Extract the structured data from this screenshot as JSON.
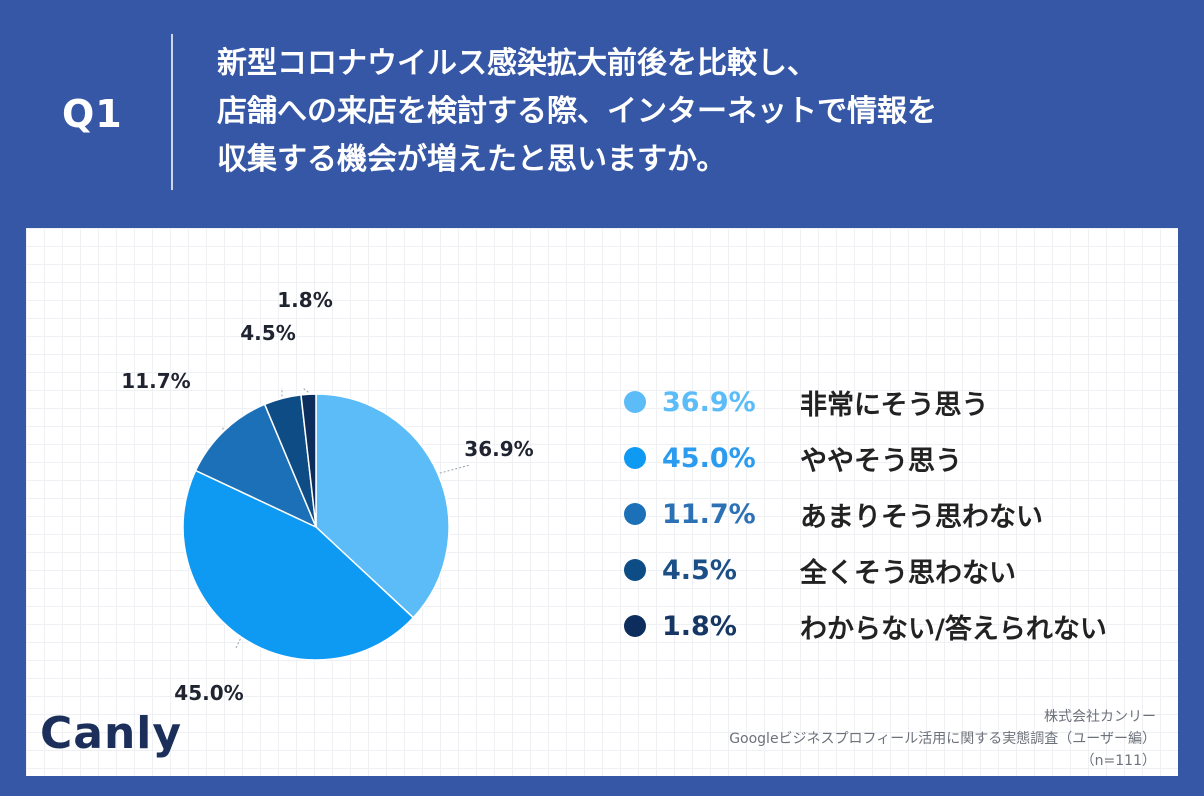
{
  "header": {
    "q_label": "Q1",
    "question_lines": [
      "新型コロナウイルス感染拡大前後を比較し、",
      "店舗への来店を検討する際、インターネットで情報を",
      "収集する機会が増えたと思いますか。"
    ]
  },
  "colors": {
    "background": "#3557a6",
    "panel": "#ffffff"
  },
  "chart_data": {
    "type": "pie",
    "title": "新型コロナウイルス感染拡大前後を比較し、店舗への来店を検討する際、インターネットで情報を収集する機会が増えたと思いますか。",
    "start": "12 o'clock, clockwise",
    "slices": [
      {
        "label": "非常にそう思う",
        "value": 36.9,
        "display": "36.9%",
        "color": "#5bbcf8",
        "text_color": "#5bbcf8"
      },
      {
        "label": "ややそう思う",
        "value": 45.0,
        "display": "45.0%",
        "color": "#0e9af2",
        "text_color": "#2a9bef"
      },
      {
        "label": "あまりそう思わない",
        "value": 11.7,
        "display": "11.7%",
        "color": "#1c70b8",
        "text_color": "#2c71b6"
      },
      {
        "label": "全くそう思わない",
        "value": 4.5,
        "display": "4.5%",
        "color": "#0d4c85",
        "text_color": "#1c4f86"
      },
      {
        "label": "わからない/答えられない",
        "value": 1.8,
        "display": "1.8%",
        "color": "#0d2e5c",
        "text_color": "#163763"
      }
    ]
  },
  "logo": {
    "text": "Canly"
  },
  "footer": {
    "company": "株式会社カンリー",
    "survey": "Googleビジネスプロフィール活用に関する実態調査（ユーザー編）",
    "sample": "（n=111）"
  }
}
